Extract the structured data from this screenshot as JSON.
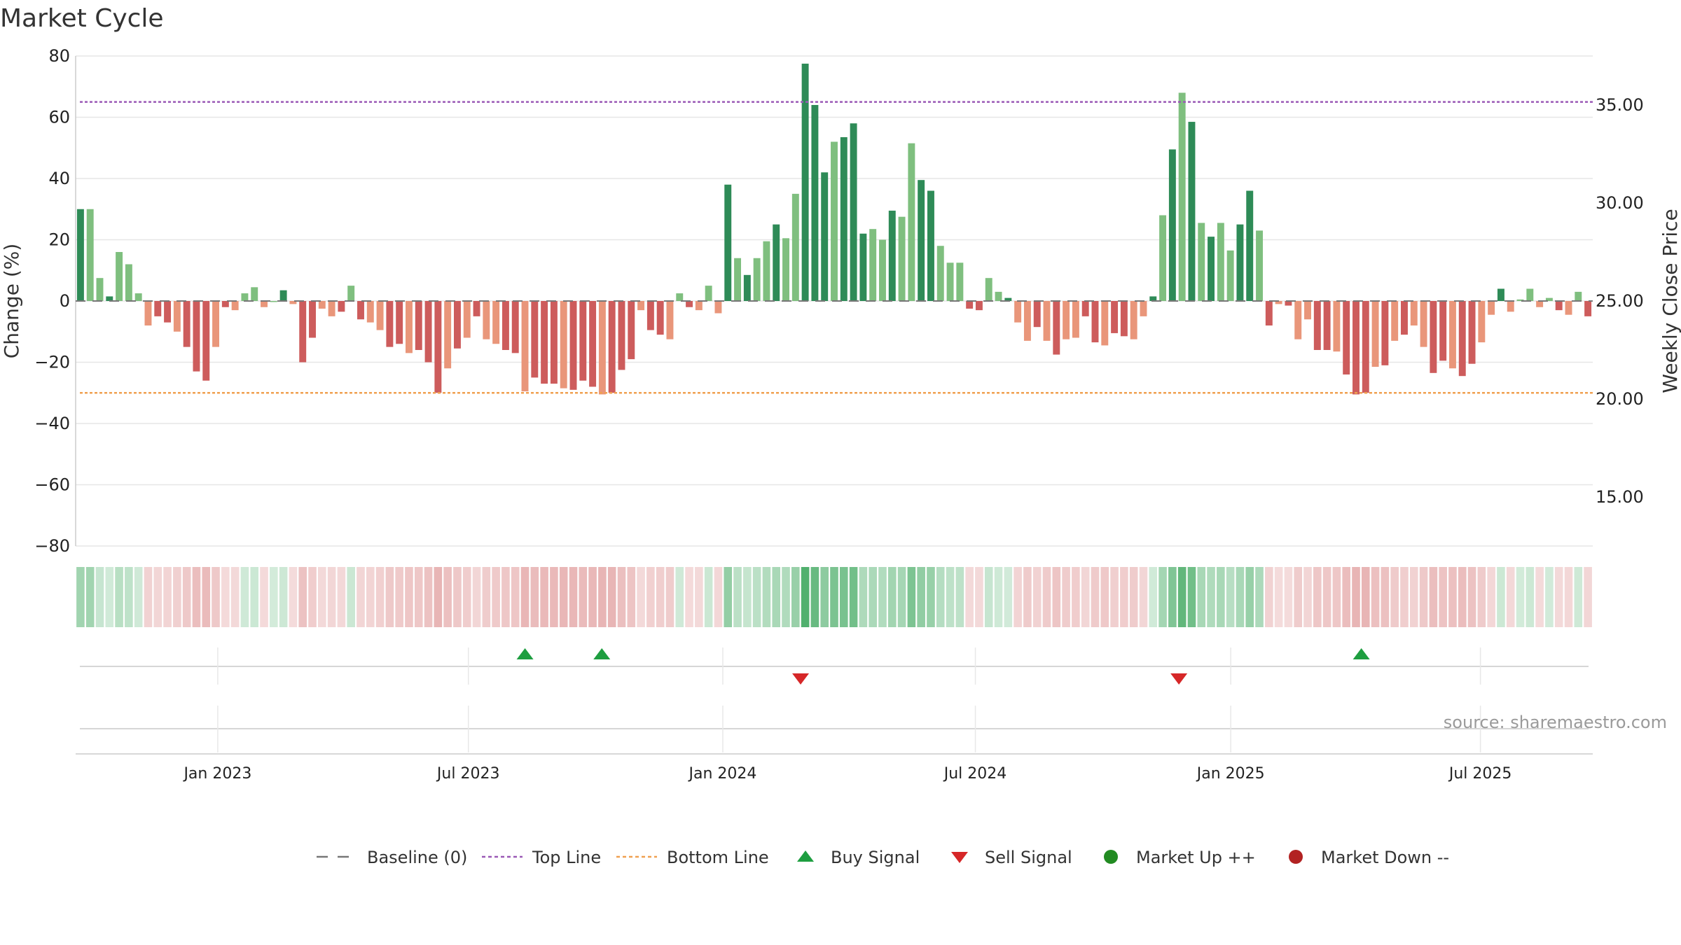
{
  "chart_data": {
    "type": "bar",
    "title": "Market Cycle",
    "ylabel": "Change (%)",
    "y2label": "Weekly Close Price",
    "ylim": [
      -80,
      80
    ],
    "y2lim": [
      12.5,
      37.5
    ],
    "y_ticks": [
      "80",
      "60",
      "40",
      "20",
      "0",
      "−20",
      "−40",
      "−60",
      "−80"
    ],
    "y2_ticks": [
      "35.00",
      "30.00",
      "25.00",
      "20.00",
      "15.00"
    ],
    "x_ticks": [
      "Jan 2023",
      "Jul 2023",
      "Jan 2024",
      "Jul 2024",
      "Jan 2025",
      "Jul 2025"
    ],
    "x_range_weeks": [
      0,
      158
    ],
    "x_tick_weeks": [
      14.8,
      40.9,
      67.4,
      93.7,
      120.3,
      146.3
    ],
    "top_line": 65,
    "bottom_line": -30,
    "baseline": 0,
    "grid": true,
    "colors": {
      "up_strong": "#2e8b57",
      "up_light": "#7fbf7f",
      "down_strong": "#cd5c5c",
      "down_light": "#e9967a",
      "top_line": "#9b59b6",
      "bottom_line": "#f0a050",
      "buy": "#1e9e40",
      "sell": "#d62728",
      "market_up": "#228b22",
      "market_down": "#b22222",
      "baseline": "#777777"
    },
    "weekly_change": [
      30,
      30,
      7.5,
      1.5,
      16,
      12,
      2.5,
      -8,
      -5,
      -7,
      -10,
      -15,
      -23,
      -26,
      -15,
      -2,
      -3,
      2.5,
      4.5,
      -2,
      0,
      3.5,
      -1,
      -20,
      -12,
      -2.5,
      -5,
      -3.5,
      5,
      -6,
      -7,
      -9.5,
      -15,
      -14,
      -17,
      -16,
      -20,
      -30,
      -22,
      -15.5,
      -12,
      -5,
      -12.5,
      -14,
      -16,
      -17,
      -29.5,
      -25,
      -27,
      -27,
      -28.5,
      -29,
      -26,
      -28,
      -30.5,
      -30,
      -22.5,
      -19,
      -3,
      -9.5,
      -11,
      -12.5,
      2.5,
      -2,
      -3,
      5,
      -4,
      38,
      14,
      8.5,
      14,
      19.5,
      25,
      20.5,
      35,
      77.5,
      64,
      42,
      52,
      53.5,
      58,
      22,
      23.5,
      20,
      29.5,
      27.5,
      51.5,
      39.5,
      36,
      18,
      12.5,
      12.5,
      -2.5,
      -3,
      7.5,
      3,
      1,
      -7,
      -13,
      -8.5,
      -13,
      -17.5,
      -12.5,
      -12,
      -5,
      -13.5,
      -14.5,
      -10.5,
      -11.5,
      -12.5,
      -5,
      1.5,
      28,
      49.5,
      68,
      58.5,
      25.5,
      21,
      25.5,
      16.5,
      25,
      36,
      23,
      -8,
      -1,
      -1.5,
      -12.5,
      -6,
      -16,
      -16,
      -16.5,
      -24,
      -30.5,
      -30,
      -21.5,
      -21,
      -13,
      -11,
      -8,
      -15,
      -23.5,
      -19.5,
      -22,
      -24.5,
      -20.5,
      -13.5,
      -4.5,
      4,
      -3.5,
      0.5,
      4,
      -2,
      1,
      -3,
      -4.5,
      3,
      -5
    ],
    "signals": {
      "buy_weeks": [
        46.8,
        54.8,
        133.9
      ],
      "sell_weeks": [
        75.5,
        114.9
      ]
    },
    "legend": [
      {
        "label": "Baseline (0)",
        "marker": "dash",
        "color": "#777777"
      },
      {
        "label": "Top Line",
        "marker": "dotted",
        "color": "#9b59b6"
      },
      {
        "label": "Bottom Line",
        "marker": "dotted",
        "color": "#f0a050"
      },
      {
        "label": "Buy Signal",
        "marker": "triangle-up",
        "color": "#1e9e40"
      },
      {
        "label": "Sell Signal",
        "marker": "triangle-down",
        "color": "#d62728"
      },
      {
        "label": "Market Up ++",
        "marker": "circle",
        "color": "#228b22"
      },
      {
        "label": "Market Down --",
        "marker": "circle",
        "color": "#b22222"
      }
    ],
    "legend_position": "bottom",
    "annotation": "source: sharemaestro.com"
  }
}
